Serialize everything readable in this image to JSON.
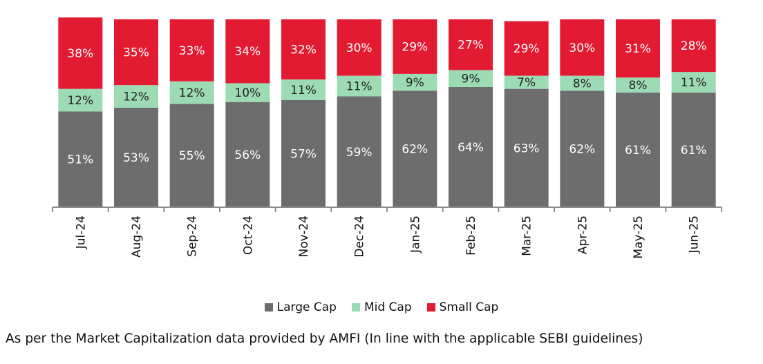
{
  "chart_data": {
    "type": "bar",
    "stacked": true,
    "categories": [
      "Jul-24",
      "Aug-24",
      "Sep-24",
      "Oct-24",
      "Nov-24",
      "Dec-24",
      "Jan-25",
      "Feb-25",
      "Mar-25",
      "Apr-25",
      "May-25",
      "Jun-25"
    ],
    "series": [
      {
        "name": "Large Cap",
        "color": "#6d6d6d",
        "values": [
          51,
          53,
          55,
          56,
          57,
          59,
          62,
          64,
          63,
          62,
          61,
          61
        ]
      },
      {
        "name": "Mid Cap",
        "color": "#9ddbb5",
        "values": [
          12,
          12,
          12,
          10,
          11,
          11,
          9,
          9,
          7,
          8,
          8,
          11
        ]
      },
      {
        "name": "Small Cap",
        "color": "#e31b32",
        "values": [
          38,
          35,
          33,
          34,
          32,
          30,
          29,
          27,
          29,
          30,
          31,
          28
        ]
      }
    ],
    "value_suffix": "%",
    "ylim": [
      0,
      100
    ],
    "grid": false,
    "legend_position": "bottom",
    "xlabel": "",
    "ylabel": ""
  },
  "footnote": "As per the Market Capitalization data provided by AMFI (In line with the applicable SEBI guidelines)"
}
